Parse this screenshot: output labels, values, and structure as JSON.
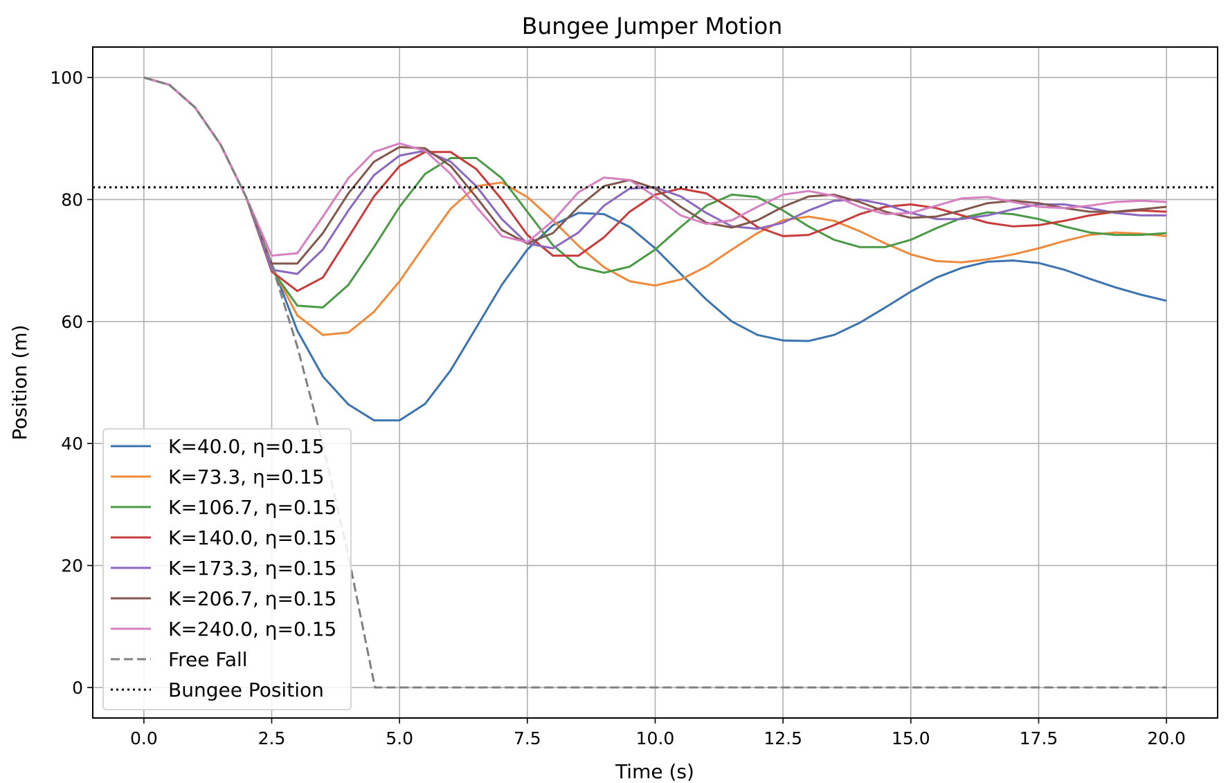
{
  "chart_data": {
    "type": "line",
    "title": "Bungee Jumper Motion",
    "xlabel": "Time (s)",
    "ylabel": "Position (m)",
    "xlim": [
      -1.0,
      21.0
    ],
    "ylim": [
      -5.0,
      105.0
    ],
    "x_ticks": [
      0.0,
      2.5,
      5.0,
      7.5,
      10.0,
      12.5,
      15.0,
      17.5,
      20.0
    ],
    "x_tick_labels": [
      "0.0",
      "2.5",
      "5.0",
      "7.5",
      "10.0",
      "12.5",
      "15.0",
      "17.5",
      "20.0"
    ],
    "y_ticks": [
      0,
      20,
      40,
      60,
      80,
      100
    ],
    "y_tick_labels": [
      "0",
      "20",
      "40",
      "60",
      "80",
      "100"
    ],
    "grid": true,
    "legend_position": "lower-left",
    "series": [
      {
        "name": "K=40.0, η=0.15",
        "color": "#3b73b0",
        "style": "solid",
        "points": [
          [
            0,
            100
          ],
          [
            0.5,
            98.8
          ],
          [
            1,
            95.1
          ],
          [
            1.5,
            89.0
          ],
          [
            2,
            80.4
          ],
          [
            2.5,
            69.5
          ],
          [
            3,
            58.5
          ],
          [
            3.5,
            51.0
          ],
          [
            4,
            46.4
          ],
          [
            4.5,
            43.8
          ],
          [
            5,
            43.8
          ],
          [
            5.5,
            46.5
          ],
          [
            6,
            52.0
          ],
          [
            6.5,
            59.0
          ],
          [
            7,
            66.0
          ],
          [
            7.5,
            71.8
          ],
          [
            8,
            75.8
          ],
          [
            8.5,
            77.8
          ],
          [
            9,
            77.6
          ],
          [
            9.5,
            75.5
          ],
          [
            10,
            72.0
          ],
          [
            10.5,
            67.8
          ],
          [
            11,
            63.6
          ],
          [
            11.5,
            60.0
          ],
          [
            12,
            57.8
          ],
          [
            12.5,
            56.9
          ],
          [
            13,
            56.8
          ],
          [
            13.5,
            57.8
          ],
          [
            14,
            59.8
          ],
          [
            14.5,
            62.3
          ],
          [
            15,
            64.9
          ],
          [
            15.5,
            67.2
          ],
          [
            16,
            68.8
          ],
          [
            16.5,
            69.8
          ],
          [
            17,
            70.0
          ],
          [
            17.5,
            69.6
          ],
          [
            18,
            68.5
          ],
          [
            18.5,
            67.0
          ],
          [
            19,
            65.6
          ],
          [
            19.5,
            64.4
          ],
          [
            20,
            63.4
          ]
        ]
      },
      {
        "name": "K=73.3, η=0.15",
        "color": "#f0893a",
        "style": "solid",
        "points": [
          [
            0,
            100
          ],
          [
            0.5,
            98.8
          ],
          [
            1,
            95.1
          ],
          [
            1.5,
            89.0
          ],
          [
            2,
            80.4
          ],
          [
            2.5,
            69.0
          ],
          [
            3,
            61.0
          ],
          [
            3.5,
            57.8
          ],
          [
            4,
            58.2
          ],
          [
            4.5,
            61.6
          ],
          [
            5,
            66.6
          ],
          [
            5.5,
            72.6
          ],
          [
            6,
            78.5
          ],
          [
            6.5,
            82.2
          ],
          [
            7,
            82.8
          ],
          [
            7.5,
            80.4
          ],
          [
            8,
            76.6
          ],
          [
            8.5,
            72.4
          ],
          [
            9,
            68.9
          ],
          [
            9.5,
            66.6
          ],
          [
            10,
            65.9
          ],
          [
            10.5,
            66.9
          ],
          [
            11,
            69.0
          ],
          [
            11.5,
            71.8
          ],
          [
            12,
            74.5
          ],
          [
            12.5,
            76.6
          ],
          [
            13,
            77.2
          ],
          [
            13.5,
            76.5
          ],
          [
            14,
            74.8
          ],
          [
            14.5,
            72.8
          ],
          [
            15,
            71.0
          ],
          [
            15.5,
            69.9
          ],
          [
            16,
            69.7
          ],
          [
            16.5,
            70.2
          ],
          [
            17,
            71.0
          ],
          [
            17.5,
            72.0
          ],
          [
            18,
            73.2
          ],
          [
            18.5,
            74.2
          ],
          [
            19,
            74.6
          ],
          [
            19.5,
            74.4
          ],
          [
            20,
            74.0
          ]
        ]
      },
      {
        "name": "K=106.7, η=0.15",
        "color": "#4a9a45",
        "style": "solid",
        "points": [
          [
            0,
            100
          ],
          [
            0.5,
            98.8
          ],
          [
            1,
            95.1
          ],
          [
            1.5,
            89.0
          ],
          [
            2,
            80.4
          ],
          [
            2.5,
            68.5
          ],
          [
            3,
            62.6
          ],
          [
            3.5,
            62.3
          ],
          [
            4,
            66.0
          ],
          [
            4.5,
            72.2
          ],
          [
            5,
            78.8
          ],
          [
            5.5,
            84.2
          ],
          [
            6,
            86.8
          ],
          [
            6.5,
            86.8
          ],
          [
            7,
            83.5
          ],
          [
            7.5,
            78.0
          ],
          [
            8,
            72.5
          ],
          [
            8.5,
            69.0
          ],
          [
            9,
            68.0
          ],
          [
            9.5,
            69.0
          ],
          [
            10,
            71.8
          ],
          [
            10.5,
            75.5
          ],
          [
            11,
            79.0
          ],
          [
            11.5,
            80.8
          ],
          [
            12,
            80.4
          ],
          [
            12.5,
            78.2
          ],
          [
            13,
            75.6
          ],
          [
            13.5,
            73.4
          ],
          [
            14,
            72.2
          ],
          [
            14.5,
            72.2
          ],
          [
            15,
            73.4
          ],
          [
            15.5,
            75.3
          ],
          [
            16,
            77.0
          ],
          [
            16.5,
            77.9
          ],
          [
            17,
            77.6
          ],
          [
            17.5,
            76.8
          ],
          [
            18,
            75.6
          ],
          [
            18.5,
            74.6
          ],
          [
            19,
            74.2
          ],
          [
            19.5,
            74.2
          ],
          [
            20,
            74.5
          ]
        ]
      },
      {
        "name": "K=140.0, η=0.15",
        "color": "#c83b3a",
        "style": "solid",
        "points": [
          [
            0,
            100
          ],
          [
            0.5,
            98.8
          ],
          [
            1,
            95.1
          ],
          [
            1.5,
            89.0
          ],
          [
            2,
            80.4
          ],
          [
            2.5,
            68.2
          ],
          [
            3,
            65.0
          ],
          [
            3.5,
            67.2
          ],
          [
            4,
            73.8
          ],
          [
            4.5,
            80.5
          ],
          [
            5,
            85.5
          ],
          [
            5.5,
            87.8
          ],
          [
            6,
            87.8
          ],
          [
            6.5,
            85.0
          ],
          [
            7,
            80.0
          ],
          [
            7.5,
            74.2
          ],
          [
            8,
            70.8
          ],
          [
            8.5,
            70.8
          ],
          [
            9,
            73.8
          ],
          [
            9.5,
            78.0
          ],
          [
            10,
            80.8
          ],
          [
            10.5,
            81.8
          ],
          [
            11,
            81.0
          ],
          [
            11.5,
            78.4
          ],
          [
            12,
            75.5
          ],
          [
            12.5,
            74.0
          ],
          [
            13,
            74.2
          ],
          [
            13.5,
            75.8
          ],
          [
            14,
            77.6
          ],
          [
            14.5,
            78.8
          ],
          [
            15,
            79.2
          ],
          [
            15.5,
            78.6
          ],
          [
            16,
            77.4
          ],
          [
            16.5,
            76.2
          ],
          [
            17,
            75.6
          ],
          [
            17.5,
            75.8
          ],
          [
            18,
            76.5
          ],
          [
            18.5,
            77.4
          ],
          [
            19,
            78.0
          ],
          [
            19.5,
            78.2
          ],
          [
            20,
            78.0
          ]
        ]
      },
      {
        "name": "K=173.3, η=0.15",
        "color": "#8b68bf",
        "style": "solid",
        "points": [
          [
            0,
            100
          ],
          [
            0.5,
            98.8
          ],
          [
            1,
            95.1
          ],
          [
            1.5,
            89.0
          ],
          [
            2,
            80.4
          ],
          [
            2.5,
            68.5
          ],
          [
            3,
            67.8
          ],
          [
            3.5,
            71.8
          ],
          [
            4,
            78.2
          ],
          [
            4.5,
            84.0
          ],
          [
            5,
            87.2
          ],
          [
            5.5,
            88.0
          ],
          [
            6,
            86.2
          ],
          [
            6.5,
            82.2
          ],
          [
            7,
            76.8
          ],
          [
            7.5,
            72.8
          ],
          [
            8,
            72.0
          ],
          [
            8.5,
            74.6
          ],
          [
            9,
            79.0
          ],
          [
            9.5,
            81.8
          ],
          [
            10,
            82.0
          ],
          [
            10.5,
            80.5
          ],
          [
            11,
            77.8
          ],
          [
            11.5,
            75.6
          ],
          [
            12,
            75.2
          ],
          [
            12.5,
            76.2
          ],
          [
            13,
            78.2
          ],
          [
            13.5,
            79.8
          ],
          [
            14,
            80.0
          ],
          [
            14.5,
            79.2
          ],
          [
            15,
            77.8
          ],
          [
            15.5,
            76.8
          ],
          [
            16,
            76.8
          ],
          [
            16.5,
            77.4
          ],
          [
            17,
            78.4
          ],
          [
            17.5,
            79.2
          ],
          [
            18,
            79.2
          ],
          [
            18.5,
            78.6
          ],
          [
            19,
            77.8
          ],
          [
            19.5,
            77.4
          ],
          [
            20,
            77.4
          ]
        ]
      },
      {
        "name": "K=206.7, η=0.15",
        "color": "#82574c",
        "style": "solid",
        "points": [
          [
            0,
            100
          ],
          [
            0.5,
            98.8
          ],
          [
            1,
            95.1
          ],
          [
            1.5,
            89.0
          ],
          [
            2,
            80.4
          ],
          [
            2.5,
            69.5
          ],
          [
            3,
            69.5
          ],
          [
            3.5,
            74.5
          ],
          [
            4,
            81.0
          ],
          [
            4.5,
            86.2
          ],
          [
            5,
            88.6
          ],
          [
            5.5,
            88.4
          ],
          [
            6,
            85.5
          ],
          [
            6.5,
            80.4
          ],
          [
            7,
            75.0
          ],
          [
            7.5,
            72.8
          ],
          [
            8,
            74.5
          ],
          [
            8.5,
            78.8
          ],
          [
            9,
            82.2
          ],
          [
            9.5,
            83.2
          ],
          [
            10,
            81.8
          ],
          [
            10.5,
            78.8
          ],
          [
            11,
            76.2
          ],
          [
            11.5,
            75.4
          ],
          [
            12,
            76.6
          ],
          [
            12.5,
            78.8
          ],
          [
            13,
            80.5
          ],
          [
            13.5,
            80.8
          ],
          [
            14,
            79.6
          ],
          [
            14.5,
            78.0
          ],
          [
            15,
            77.0
          ],
          [
            15.5,
            77.2
          ],
          [
            16,
            78.2
          ],
          [
            16.5,
            79.4
          ],
          [
            17,
            79.8
          ],
          [
            17.5,
            79.4
          ],
          [
            18,
            78.6
          ],
          [
            18.5,
            78.0
          ],
          [
            19,
            78.0
          ],
          [
            19.5,
            78.4
          ],
          [
            20,
            78.8
          ]
        ]
      },
      {
        "name": "K=240.0, η=0.15",
        "color": "#d67fc1",
        "style": "solid",
        "points": [
          [
            0,
            100
          ],
          [
            0.5,
            98.8
          ],
          [
            1,
            95.1
          ],
          [
            1.5,
            89.0
          ],
          [
            2,
            80.4
          ],
          [
            2.5,
            70.8
          ],
          [
            3,
            71.2
          ],
          [
            3.5,
            77.2
          ],
          [
            4,
            83.5
          ],
          [
            4.5,
            87.8
          ],
          [
            5,
            89.2
          ],
          [
            5.5,
            88.0
          ],
          [
            6,
            84.2
          ],
          [
            6.5,
            78.8
          ],
          [
            7,
            74.0
          ],
          [
            7.5,
            73.0
          ],
          [
            8,
            76.5
          ],
          [
            8.5,
            81.2
          ],
          [
            9,
            83.6
          ],
          [
            9.5,
            83.2
          ],
          [
            10,
            80.5
          ],
          [
            10.5,
            77.4
          ],
          [
            11,
            76.0
          ],
          [
            11.5,
            76.6
          ],
          [
            12,
            78.8
          ],
          [
            12.5,
            80.8
          ],
          [
            13,
            81.4
          ],
          [
            13.5,
            80.6
          ],
          [
            14,
            78.8
          ],
          [
            14.5,
            77.6
          ],
          [
            15,
            77.8
          ],
          [
            15.5,
            79.0
          ],
          [
            16,
            80.2
          ],
          [
            16.5,
            80.4
          ],
          [
            17,
            79.6
          ],
          [
            17.5,
            78.8
          ],
          [
            18,
            78.6
          ],
          [
            18.5,
            79.0
          ],
          [
            19,
            79.6
          ],
          [
            19.5,
            79.8
          ],
          [
            20,
            79.6
          ]
        ]
      },
      {
        "name": "Free Fall",
        "color": "#808080",
        "style": "dashed",
        "points": [
          [
            0,
            100
          ],
          [
            0.5,
            98.8
          ],
          [
            1,
            95.1
          ],
          [
            1.5,
            89.0
          ],
          [
            2,
            80.4
          ],
          [
            2.5,
            69.4
          ],
          [
            3,
            55.9
          ],
          [
            3.5,
            39.9
          ],
          [
            4,
            21.6
          ],
          [
            4.52,
            0
          ],
          [
            5,
            0
          ],
          [
            10,
            0
          ],
          [
            15,
            0
          ],
          [
            20,
            0
          ]
        ]
      },
      {
        "name": "Bungee Position",
        "color": "#000000",
        "style": "dotted",
        "points": [
          [
            -1,
            82
          ],
          [
            21,
            82
          ]
        ]
      }
    ]
  }
}
